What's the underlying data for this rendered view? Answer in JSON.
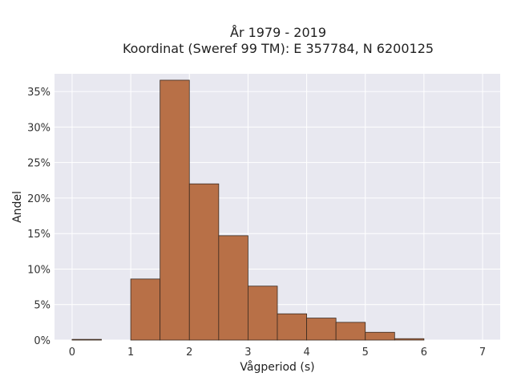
{
  "chart_data": {
    "type": "bar",
    "title": "År 1979 - 2019",
    "subtitle": "Koordinat (Sweref 99 TM): E 357784, N 6200125",
    "xlabel": "Vågperiod (s)",
    "ylabel": "Andel",
    "xlim": [
      -0.3,
      7.3
    ],
    "ylim": [
      0,
      37.5
    ],
    "x_ticks": [
      0,
      1,
      2,
      3,
      4,
      5,
      6,
      7
    ],
    "y_ticks": [
      0,
      5,
      10,
      15,
      20,
      25,
      30,
      35
    ],
    "y_tick_suffix": "%",
    "bins": [
      {
        "x0": 0.0,
        "x1": 0.5,
        "value": 0.1
      },
      {
        "x0": 0.5,
        "x1": 1.0,
        "value": 0.0
      },
      {
        "x0": 1.0,
        "x1": 1.5,
        "value": 8.6
      },
      {
        "x0": 1.5,
        "x1": 2.0,
        "value": 36.6
      },
      {
        "x0": 2.0,
        "x1": 2.5,
        "value": 22.0
      },
      {
        "x0": 2.5,
        "x1": 3.0,
        "value": 14.7
      },
      {
        "x0": 3.0,
        "x1": 3.5,
        "value": 7.6
      },
      {
        "x0": 3.5,
        "x1": 4.0,
        "value": 3.7
      },
      {
        "x0": 4.0,
        "x1": 4.5,
        "value": 3.1
      },
      {
        "x0": 4.5,
        "x1": 5.0,
        "value": 2.5
      },
      {
        "x0": 5.0,
        "x1": 5.5,
        "value": 1.1
      },
      {
        "x0": 5.5,
        "x1": 6.0,
        "value": 0.2
      }
    ],
    "grid": true,
    "colors": {
      "bar_fill": "#b87047",
      "bar_stroke": "#3a2a20",
      "plot_bg": "#e8e8f0",
      "grid": "#ffffff"
    }
  }
}
